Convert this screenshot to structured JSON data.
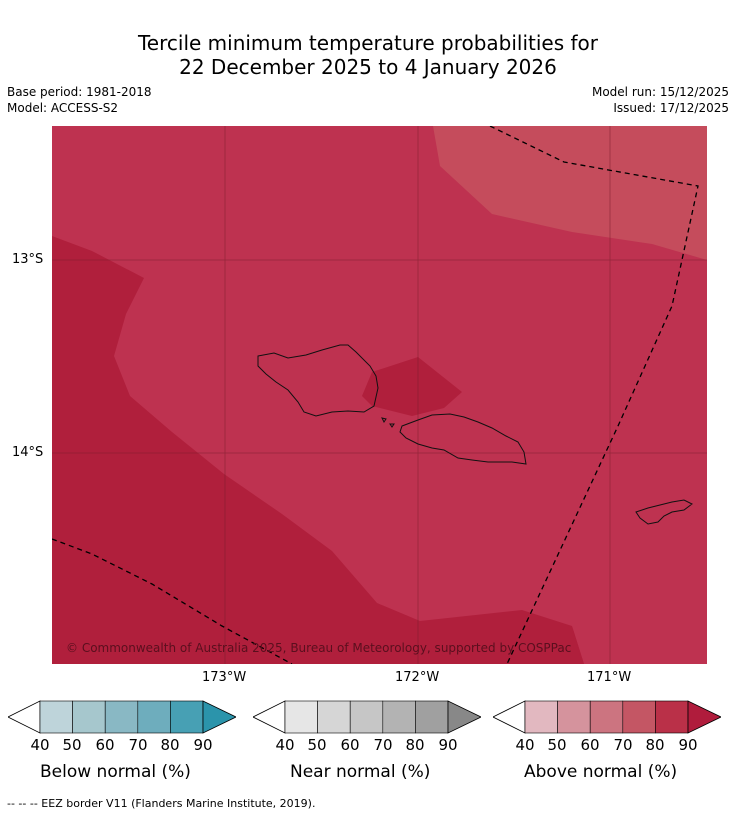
{
  "header": {
    "title_line1": "Tercile minimum temperature probabilities for",
    "title_line2": "22 December 2025 to 4 January 2026",
    "base_period": "Base period: 1981-2018",
    "model": "Model: ACCESS-S2",
    "model_run": "Model run: 15/12/2025",
    "issued": "Issued: 17/12/2025"
  },
  "map": {
    "lat_labels": [
      "13°S",
      "14°S"
    ],
    "lon_labels": [
      "173°W",
      "172°W",
      "171°W"
    ],
    "copyright": "© Commonwealth of Australia 2025, Bureau of Meteorology, supported by COSPPac",
    "regions": [
      {
        "category": "above normal",
        "probability_band": "80-90%",
        "color": "#b01f3c"
      },
      {
        "category": "above normal",
        "probability_band": "70-80%",
        "color": "#be3250"
      },
      {
        "category": "above normal",
        "probability_band": "60-70%",
        "color": "#c54c5c"
      }
    ],
    "islands": [
      "Savai'i",
      "Upolu",
      "Tutuila"
    ]
  },
  "legend": {
    "below": {
      "title": "Below normal (%)",
      "ticks": [
        "40",
        "50",
        "60",
        "70",
        "80",
        "90"
      ],
      "colors": [
        "#ffffff",
        "#bed4da",
        "#a6c7cd",
        "#89b8c4",
        "#6eadbd",
        "#47a0b4",
        "#2b94ab"
      ]
    },
    "near": {
      "title": "Near normal (%)",
      "ticks": [
        "40",
        "50",
        "60",
        "70",
        "80",
        "90"
      ],
      "colors": [
        "#ffffff",
        "#e6e6e6",
        "#d6d6d6",
        "#c6c6c6",
        "#b3b3b3",
        "#a0a0a0",
        "#888888"
      ]
    },
    "above": {
      "title": "Above normal (%)",
      "ticks": [
        "40",
        "50",
        "60",
        "70",
        "80",
        "90"
      ],
      "colors": [
        "#ffffff",
        "#e2b8c0",
        "#d5939d",
        "#cc7480",
        "#c45664",
        "#ba3048",
        "#b01c3c"
      ]
    }
  },
  "footer": {
    "eez_note": "--  --  -- EEZ border V11 (Flanders Marine Institute, 2019)."
  }
}
